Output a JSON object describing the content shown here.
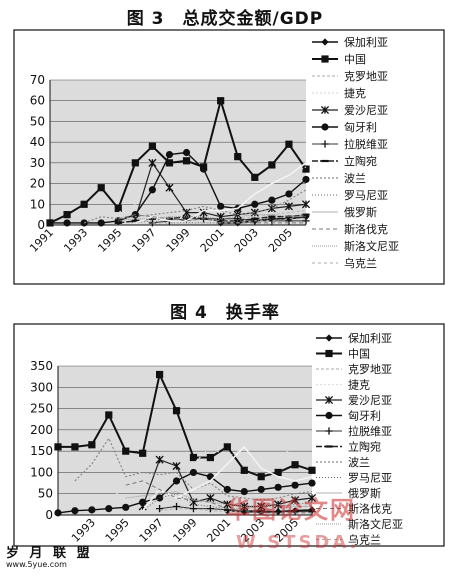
{
  "figures": [
    {
      "title": "图 3　总成交金额/GDP"
    },
    {
      "title": "图 4　换手率"
    }
  ],
  "watermarks": {
    "left": "岁 月 联 盟",
    "left_sub": "www.5yue.com",
    "right": "华图论文网",
    "right_sub": "W.STSDA."
  },
  "chart_data": [
    {
      "type": "line",
      "title": "图 3　总成交金额/GDP",
      "x": [
        "1991",
        "1992",
        "1993",
        "1994",
        "1995",
        "1996",
        "1997",
        "1998",
        "1999",
        "2000",
        "2001",
        "2002",
        "2003",
        "2004",
        "2005",
        "2006"
      ],
      "x_tick_labels": [
        "1991",
        "1993",
        "1995",
        "1997",
        "1999",
        "2001",
        "2003",
        "2005"
      ],
      "ylim": [
        0,
        70
      ],
      "y_ticks": [
        0,
        10,
        20,
        30,
        40,
        50,
        60,
        70
      ],
      "grid": true,
      "legend_position": "right",
      "series": [
        {
          "name": "保加利亚",
          "marker": "diamond",
          "values": [
            null,
            null,
            null,
            null,
            null,
            null,
            null,
            null,
            null,
            null,
            1,
            1,
            2,
            3,
            3,
            4
          ]
        },
        {
          "name": "中国",
          "marker": "square",
          "values": [
            1,
            5,
            10,
            18,
            8,
            30,
            38,
            30,
            31,
            28,
            60,
            33,
            23,
            29,
            39,
            27
          ]
        },
        {
          "name": "克罗地亚",
          "marker": "none",
          "values": [
            null,
            null,
            null,
            null,
            null,
            null,
            1,
            2,
            2,
            3,
            3,
            3,
            4,
            5,
            6,
            7
          ]
        },
        {
          "name": "捷克",
          "marker": "none",
          "values": [
            null,
            null,
            null,
            2,
            6,
            10,
            14,
            8,
            12,
            14,
            18,
            15,
            18,
            22,
            24,
            28
          ]
        },
        {
          "name": "爱沙尼亚",
          "marker": "asterisk",
          "values": [
            null,
            null,
            null,
            null,
            null,
            3,
            30,
            18,
            6,
            6,
            4,
            5,
            6,
            8,
            9,
            10
          ]
        },
        {
          "name": "匈牙利",
          "marker": "circle",
          "values": [
            1,
            1,
            1,
            1,
            2,
            5,
            17,
            34,
            35,
            27,
            9,
            8,
            10,
            12,
            15,
            22
          ]
        },
        {
          "name": "拉脱维亚",
          "marker": "plus",
          "values": [
            null,
            null,
            null,
            null,
            null,
            null,
            1,
            2,
            3,
            3,
            3,
            3,
            2,
            2,
            2,
            2
          ]
        },
        {
          "name": "立陶宛",
          "marker": "dash",
          "values": [
            null,
            null,
            null,
            null,
            1,
            2,
            3,
            3,
            4,
            3,
            2,
            2,
            3,
            4,
            4,
            5
          ]
        },
        {
          "name": "波兰",
          "marker": "none",
          "values": [
            null,
            null,
            1,
            4,
            3,
            4,
            5,
            6,
            7,
            9,
            7,
            5,
            6,
            8,
            12,
            17
          ]
        },
        {
          "name": "罗马尼亚",
          "marker": "none",
          "values": [
            null,
            null,
            null,
            null,
            null,
            1,
            2,
            1,
            1,
            1,
            1,
            2,
            2,
            3,
            4,
            5
          ]
        },
        {
          "name": "俄罗斯",
          "marker": "none",
          "values": [
            null,
            null,
            null,
            null,
            null,
            1,
            4,
            2,
            2,
            7,
            7,
            8,
            15,
            20,
            24,
            30
          ]
        },
        {
          "name": "斯洛伐克",
          "marker": "none",
          "values": [
            null,
            null,
            null,
            null,
            3,
            5,
            4,
            3,
            2,
            3,
            2,
            1,
            1,
            1,
            1,
            1
          ]
        },
        {
          "name": "斯洛文尼亚",
          "marker": "none",
          "values": [
            null,
            null,
            null,
            null,
            2,
            3,
            3,
            4,
            4,
            4,
            3,
            4,
            5,
            5,
            4,
            4
          ]
        },
        {
          "name": "乌克兰",
          "marker": "none",
          "values": [
            null,
            null,
            null,
            null,
            null,
            null,
            1,
            1,
            1,
            1,
            1,
            1,
            2,
            2,
            3,
            3
          ]
        }
      ]
    },
    {
      "type": "line",
      "title": "图 4　换手率",
      "x": [
        "1991",
        "1992",
        "1993",
        "1994",
        "1995",
        "1996",
        "1997",
        "1998",
        "1999",
        "2000",
        "2001",
        "2002",
        "2003",
        "2004",
        "2005",
        "2006"
      ],
      "x_tick_labels": [
        "1993",
        "1995",
        "1997",
        "1999",
        "2001",
        "2003",
        "2005"
      ],
      "ylim": [
        0,
        350
      ],
      "y_ticks": [
        0,
        50,
        100,
        150,
        200,
        250,
        300,
        350
      ],
      "grid": true,
      "legend_position": "right",
      "series": [
        {
          "name": "保加利亚",
          "marker": "diamond",
          "values": [
            null,
            null,
            null,
            null,
            null,
            null,
            null,
            null,
            null,
            null,
            10,
            8,
            7,
            8,
            10,
            12
          ]
        },
        {
          "name": "中国",
          "marker": "square",
          "values": [
            160,
            160,
            165,
            235,
            150,
            145,
            330,
            245,
            135,
            135,
            160,
            105,
            90,
            100,
            118,
            105
          ]
        },
        {
          "name": "克罗地亚",
          "marker": "none",
          "values": [
            null,
            null,
            null,
            null,
            null,
            null,
            10,
            15,
            15,
            10,
            8,
            10,
            12,
            15,
            18,
            22
          ]
        },
        {
          "name": "捷克",
          "marker": "none",
          "values": [
            null,
            null,
            null,
            40,
            60,
            110,
            140,
            60,
            120,
            160,
            135,
            160,
            190,
            160,
            140,
            130
          ]
        },
        {
          "name": "爱沙尼亚",
          "marker": "asterisk",
          "values": [
            null,
            null,
            null,
            null,
            null,
            20,
            130,
            115,
            30,
            40,
            25,
            20,
            20,
            25,
            35,
            40
          ]
        },
        {
          "name": "匈牙利",
          "marker": "circle",
          "values": [
            5,
            10,
            12,
            15,
            18,
            30,
            40,
            80,
            100,
            90,
            60,
            55,
            60,
            65,
            70,
            75
          ]
        },
        {
          "name": "拉脱维亚",
          "marker": "plus",
          "values": [
            null,
            null,
            null,
            null,
            null,
            null,
            15,
            20,
            15,
            15,
            12,
            10,
            10,
            8,
            8,
            8
          ]
        },
        {
          "name": "立陶宛",
          "marker": "dash",
          "values": [
            null,
            null,
            null,
            null,
            null,
            null,
            null,
            null,
            null,
            null,
            null,
            null,
            null,
            null,
            null,
            null
          ]
        },
        {
          "name": "波兰",
          "marker": "none",
          "values": [
            null,
            80,
            120,
            180,
            90,
            100,
            95,
            100,
            60,
            75,
            45,
            40,
            35,
            40,
            50,
            55
          ]
        },
        {
          "name": "罗马尼亚",
          "marker": "none",
          "values": [
            null,
            null,
            null,
            null,
            null,
            10,
            40,
            50,
            25,
            20,
            15,
            15,
            20,
            20,
            25,
            30
          ]
        },
        {
          "name": "俄罗斯",
          "marker": "none",
          "values": [
            null,
            null,
            null,
            null,
            null,
            10,
            60,
            40,
            60,
            80,
            120,
            160,
            110,
            90,
            80,
            90
          ]
        },
        {
          "name": "斯洛伐克",
          "marker": "none",
          "values": [
            null,
            null,
            null,
            null,
            70,
            80,
            60,
            40,
            35,
            30,
            15,
            10,
            5,
            5,
            5,
            5
          ]
        },
        {
          "name": "斯洛文尼亚",
          "marker": "none",
          "values": [
            null,
            null,
            null,
            null,
            40,
            45,
            50,
            55,
            35,
            30,
            25,
            20,
            20,
            25,
            20,
            20
          ]
        },
        {
          "name": "乌克兰",
          "marker": "none",
          "values": [
            null,
            null,
            null,
            null,
            null,
            null,
            null,
            null,
            null,
            null,
            null,
            null,
            null,
            null,
            null,
            null
          ]
        }
      ]
    }
  ]
}
